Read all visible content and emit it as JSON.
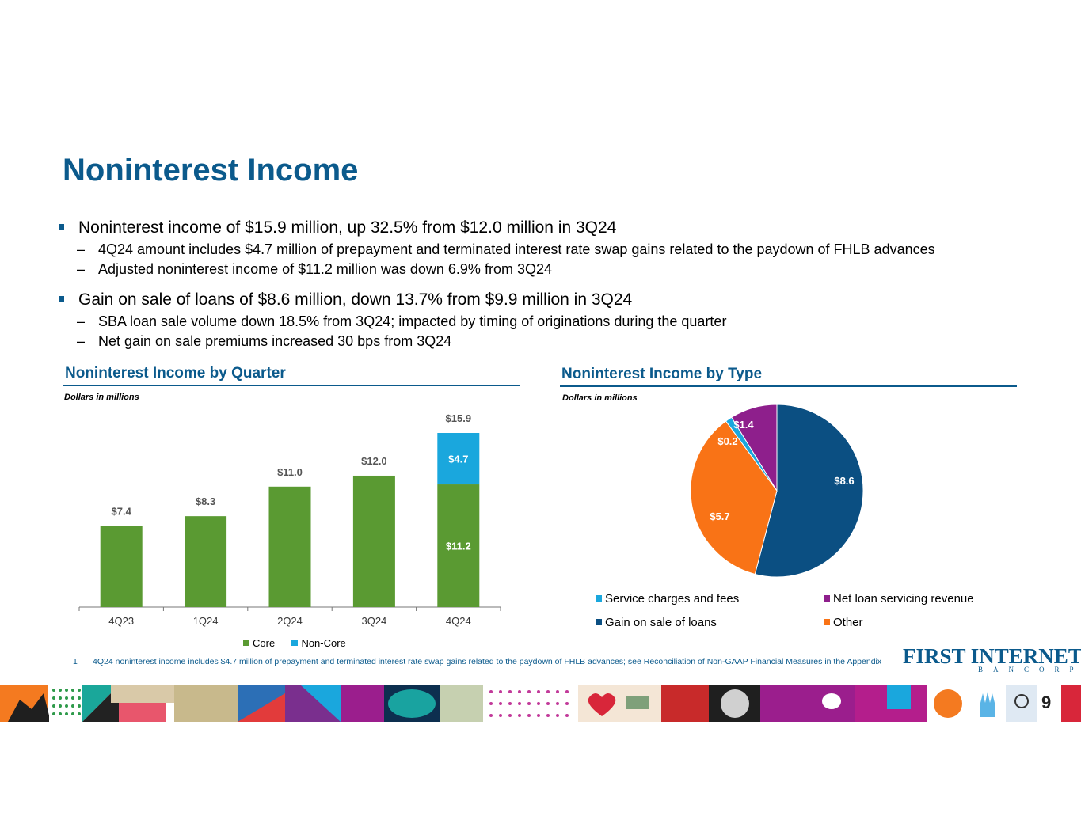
{
  "title": "Noninterest Income",
  "bullets": [
    {
      "text": "Noninterest income of $15.9 million, up 32.5% from $12.0 million in 3Q24",
      "subs": [
        "4Q24 amount includes $4.7 million of prepayment and terminated interest rate swap gains related to the paydown of FHLB advances",
        "Adjusted noninterest income of $11.2 million was down 6.9% from 3Q24"
      ]
    },
    {
      "text": "Gain on sale of loans of $8.6 million, down 13.7% from $9.9 million in 3Q24",
      "subs": [
        "SBA loan sale volume down 18.5% from 3Q24; impacted by timing of originations during the quarter",
        "Net gain on sale premiums increased 30 bps from 3Q24"
      ]
    }
  ],
  "bar_section": {
    "title": "Noninterest Income by Quarter",
    "subtitle": "Dollars in millions"
  },
  "pie_section": {
    "title": "Noninterest Income by Type",
    "subtitle": "Dollars in millions"
  },
  "bar_marker": "■",
  "dash": "–",
  "chart_data": [
    {
      "type": "bar",
      "stacked": true,
      "categories": [
        "4Q23",
        "1Q24",
        "2Q24",
        "3Q24",
        "4Q24"
      ],
      "series": [
        {
          "name": "Core",
          "values": [
            7.4,
            8.3,
            11.0,
            12.0,
            11.2
          ],
          "color": "#5a9a32"
        },
        {
          "name": "Non-Core",
          "values": [
            0,
            0,
            0,
            0,
            4.7
          ],
          "color": "#1aa7dd"
        }
      ],
      "total_labels": [
        "$7.4",
        "$8.3",
        "$11.0",
        "$12.0",
        "$15.9"
      ],
      "inside_labels": [
        {
          "index": 4,
          "series": 0,
          "text": "$11.2"
        },
        {
          "index": 4,
          "series": 1,
          "text": "$4.7"
        }
      ],
      "ylim": [
        0,
        18
      ],
      "legend": "bottom"
    },
    {
      "type": "pie",
      "slices": [
        {
          "name": "Gain on sale of loans",
          "value": 8.6,
          "label": "$8.6",
          "color": "#0b4f82"
        },
        {
          "name": "Other",
          "value": 5.7,
          "label": "$5.7",
          "color": "#f97316"
        },
        {
          "name": "Service charges and fees",
          "value": 0.2,
          "label": "$0.2",
          "color": "#1aa7dd"
        },
        {
          "name": "Net loan servicing revenue",
          "value": 1.4,
          "label": "$1.4",
          "color": "#8e1f8c"
        }
      ],
      "legend_order": [
        "Service charges and fees",
        "Net loan servicing revenue",
        "Gain on sale of loans",
        "Other"
      ],
      "legend": "bottom"
    }
  ],
  "footnote": {
    "number": "1",
    "text": "4Q24 noninterest income includes $4.7 million of prepayment and terminated interest rate swap gains related to the paydown of FHLB advances; see Reconciliation of Non-GAAP Financial Measures in the Appendix"
  },
  "logo": {
    "main": "FIRST INTERNET",
    "sub": "BANCORP"
  },
  "page_number": "9"
}
